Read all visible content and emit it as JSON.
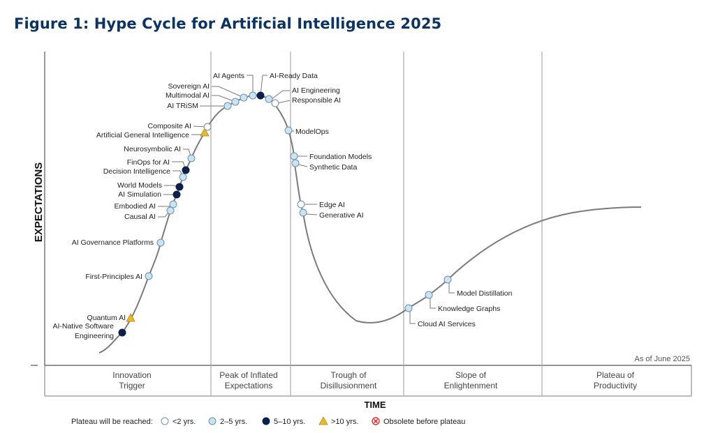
{
  "figure": {
    "title": "Figure 1: Hype Cycle for Artificial Intelligence 2025",
    "as_of": "As of June 2025"
  },
  "colors": {
    "title": "#0b3364",
    "lt2": "#ffffff",
    "y2to5": "#c9e5f5",
    "y5to10": "#0c1f4a",
    "gt10": "#e8b928",
    "obsolete": "#d9302c"
  },
  "legend": {
    "prefix": "Plateau will be reached:",
    "items": [
      {
        "key": "lt2",
        "label": "<2 yrs."
      },
      {
        "key": "y2to5",
        "label": "2–5 yrs."
      },
      {
        "key": "y5to10",
        "label": "5–10 yrs."
      },
      {
        "key": "gt10",
        "label": ">10 yrs."
      },
      {
        "key": "obsolete",
        "label": "Obsolete before plateau"
      }
    ]
  },
  "chart_data": {
    "type": "scatter",
    "title": "Figure 1: Hype Cycle for Artificial Intelligence 2025",
    "xlabel": "TIME",
    "ylabel": "EXPECTATIONS",
    "phases": [
      {
        "line1": "Innovation",
        "line2": "Trigger"
      },
      {
        "line1": "Peak of Inflated",
        "line2": "Expectations"
      },
      {
        "line1": "Trough of",
        "line2": "Disillusionment"
      },
      {
        "line1": "Slope of",
        "line2": "Enlightenment"
      },
      {
        "line1": "Plateau of",
        "line2": "Productivity"
      }
    ],
    "points": [
      {
        "lines": [
          "AI-Native Software",
          "Engineering"
        ],
        "cat": "y5to10"
      },
      {
        "lines": [
          "Quantum AI"
        ],
        "cat": "gt10"
      },
      {
        "lines": [
          "First-Principles AI"
        ],
        "cat": "y2to5"
      },
      {
        "lines": [
          "AI Governance Platforms"
        ],
        "cat": "y2to5"
      },
      {
        "lines": [
          "Causal AI"
        ],
        "cat": "y2to5"
      },
      {
        "lines": [
          "Embodied AI"
        ],
        "cat": "y2to5"
      },
      {
        "lines": [
          "AI Simulation"
        ],
        "cat": "y5to10"
      },
      {
        "lines": [
          "World Models"
        ],
        "cat": "y5to10"
      },
      {
        "lines": [
          "Decision Intelligence"
        ],
        "cat": "y2to5"
      },
      {
        "lines": [
          "FinOps for AI"
        ],
        "cat": "y5to10"
      },
      {
        "lines": [
          "Neurosymbolic AI"
        ],
        "cat": "y2to5"
      },
      {
        "lines": [
          "Artificial General Intelligence"
        ],
        "cat": "gt10"
      },
      {
        "lines": [
          "Composite AI"
        ],
        "cat": "lt2"
      },
      {
        "lines": [
          "AI TRiSM"
        ],
        "cat": "y2to5"
      },
      {
        "lines": [
          "Multimodal AI"
        ],
        "cat": "y2to5"
      },
      {
        "lines": [
          "Sovereign AI"
        ],
        "cat": "y2to5"
      },
      {
        "lines": [
          "AI Agents"
        ],
        "cat": "y2to5"
      },
      {
        "lines": [
          "AI-Ready Data"
        ],
        "cat": "y5to10"
      },
      {
        "lines": [
          "AI Engineering"
        ],
        "cat": "y2to5"
      },
      {
        "lines": [
          "Responsible AI"
        ],
        "cat": "lt2"
      },
      {
        "lines": [
          "ModelOps"
        ],
        "cat": "y2to5"
      },
      {
        "lines": [
          "Foundation Models"
        ],
        "cat": "y2to5"
      },
      {
        "lines": [
          "Synthetic Data"
        ],
        "cat": "y2to5"
      },
      {
        "lines": [
          "Edge AI"
        ],
        "cat": "lt2"
      },
      {
        "lines": [
          "Generative AI"
        ],
        "cat": "y2to5"
      },
      {
        "lines": [
          "Cloud AI Services"
        ],
        "cat": "y2to5"
      },
      {
        "lines": [
          "Knowledge Graphs"
        ],
        "cat": "y2to5"
      },
      {
        "lines": [
          "Model Distillation"
        ],
        "cat": "y2to5"
      }
    ]
  }
}
